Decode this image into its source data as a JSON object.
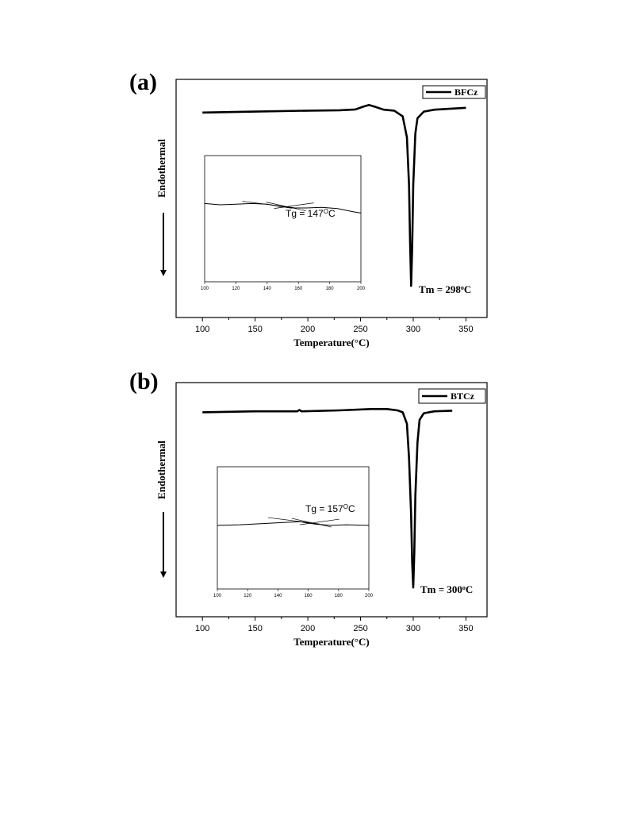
{
  "chart_data": [
    {
      "type": "line",
      "panel_label": "(a)",
      "xlabel": "Temperature(°C)",
      "ylabel": "Endothermal",
      "xlim": [
        75,
        370
      ],
      "xticks": [
        100,
        150,
        200,
        250,
        300,
        350
      ],
      "series": [
        {
          "name": "BFCz",
          "x": [
            100,
            150,
            200,
            230,
            245,
            252,
            258,
            264,
            272,
            282,
            290,
            294,
            296,
            297,
            298,
            299,
            300,
            302,
            304,
            310,
            320,
            350
          ],
          "y": [
            0.93,
            0.935,
            0.94,
            0.942,
            0.946,
            0.96,
            0.97,
            0.96,
            0.945,
            0.94,
            0.91,
            0.8,
            0.55,
            0.25,
            0.02,
            0.22,
            0.55,
            0.82,
            0.9,
            0.935,
            0.945,
            0.955
          ]
        }
      ],
      "annotations": [
        {
          "text": "Tm = 298",
          "sup": "o",
          "unit": "C"
        }
      ],
      "inset": {
        "xlim": [
          100,
          200
        ],
        "xticks": [
          100,
          120,
          140,
          160,
          180,
          200
        ],
        "annotation": {
          "text": "Tg = 147",
          "sup": "O",
          "unit": "C"
        },
        "x": [
          100,
          110,
          120,
          130,
          140,
          147,
          155,
          165,
          175,
          185,
          195,
          200
        ],
        "y": [
          0.62,
          0.61,
          0.615,
          0.62,
          0.615,
          0.6,
          0.585,
          0.585,
          0.59,
          0.58,
          0.555,
          0.545
        ]
      }
    },
    {
      "type": "line",
      "panel_label": "(b)",
      "xlabel": "Temperature(°C)",
      "ylabel": "Endothermal",
      "xlim": [
        75,
        370
      ],
      "xticks": [
        100,
        150,
        200,
        250,
        300,
        350
      ],
      "series": [
        {
          "name": "BTCz",
          "x": [
            100,
            150,
            190,
            192,
            194,
            230,
            260,
            275,
            285,
            290,
            294,
            296,
            298,
            299,
            300,
            301,
            302,
            304,
            306,
            310,
            320,
            337
          ],
          "y": [
            0.94,
            0.945,
            0.945,
            0.952,
            0.945,
            0.95,
            0.957,
            0.957,
            0.95,
            0.94,
            0.88,
            0.7,
            0.4,
            0.15,
            0.02,
            0.2,
            0.5,
            0.78,
            0.9,
            0.935,
            0.945,
            0.948
          ]
        }
      ],
      "annotations": [
        {
          "text": "Tm = 300",
          "sup": "o",
          "unit": "C"
        }
      ],
      "inset": {
        "xlim": [
          100,
          200
        ],
        "xticks": [
          100,
          120,
          140,
          160,
          180,
          200
        ],
        "annotation": {
          "text": "Tg = 157",
          "sup": "O",
          "unit": "C"
        },
        "x": [
          100,
          115,
          130,
          145,
          155,
          157,
          165,
          175,
          185,
          200
        ],
        "y": [
          0.52,
          0.525,
          0.535,
          0.545,
          0.55,
          0.545,
          0.53,
          0.52,
          0.525,
          0.52
        ]
      }
    }
  ]
}
